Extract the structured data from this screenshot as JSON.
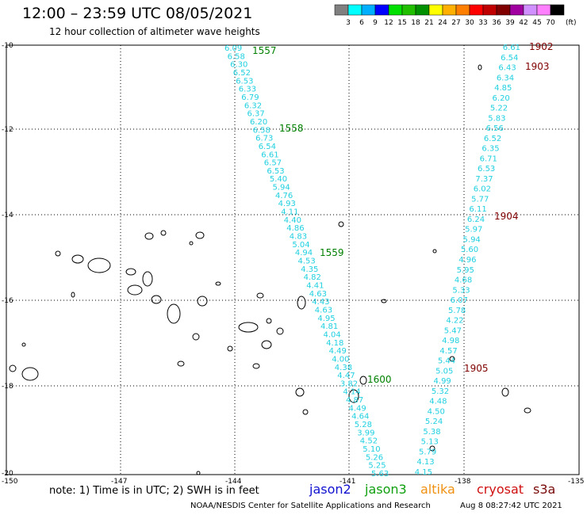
{
  "header": {
    "title": "12:00 – 23:59 UTC 08/05/2021",
    "subtitle": "12 hour collection of altimeter wave heights"
  },
  "colorbar": {
    "unit_label": "(ft)",
    "levels": [
      "3",
      "6",
      "9",
      "12",
      "15",
      "18",
      "21",
      "24",
      "27",
      "30",
      "33",
      "36",
      "39",
      "42",
      "45",
      "70"
    ],
    "colors": [
      "#808080",
      "#00ffff",
      "#00b0ff",
      "#0000ff",
      "#00e000",
      "#20c000",
      "#009000",
      "#ffff00",
      "#ffb000",
      "#ff8000",
      "#ff0000",
      "#c00000",
      "#800000",
      "#a000a0",
      "#d090ff",
      "#ff80ff",
      "#000000"
    ]
  },
  "axes": {
    "lat_labels": [
      "-10",
      "-12",
      "-14",
      "-16",
      "-18",
      "-20"
    ],
    "lon_labels": [
      "-150",
      "-147",
      "-144",
      "-141",
      "-138",
      "-135"
    ]
  },
  "tracks": {
    "jason3_west": {
      "pass_labels": [
        "1557",
        "1558",
        "1559",
        "1600"
      ],
      "values": [
        "6.09",
        "6.58",
        "6.30",
        "6.52",
        "6.53",
        "6.33",
        "6.79",
        "6.32",
        "6.37",
        "6.20",
        "6.58",
        "6.73",
        "6.54",
        "6.61",
        "6.57",
        "6.53",
        "5.40",
        "5.94",
        "4.76",
        "4.93",
        "4.11",
        "4.40",
        "4.86",
        "4.83",
        "5.04",
        "4.94",
        "4.53",
        "4.35",
        "4.82",
        "4.41",
        "4.63",
        "4.43",
        "4.63",
        "4.95",
        "4.81",
        "4.04",
        "4.18",
        "4.49",
        "4.00",
        "4.38",
        "4.47",
        "3.82",
        "4.14",
        "4.87",
        "4.49",
        "4.64",
        "5.28",
        "3.99",
        "4.52",
        "5.10",
        "5.26",
        "5.25",
        "5.63"
      ]
    },
    "jason3_east": {
      "pass_labels": [
        "1902",
        "1903",
        "1904",
        "1905"
      ],
      "values": [
        "6.61",
        "6.54",
        "6.43",
        "6.34",
        "4.85",
        "6.20",
        "5.22",
        "5.83",
        "6.56",
        "6.52",
        "6.35",
        "6.71",
        "6.53",
        "7.37",
        "6.02",
        "5.77",
        "6.11",
        "6.24",
        "5.97",
        "5.94",
        "5.60",
        "4.96",
        "5.95",
        "4.68",
        "5.33",
        "6.07",
        "5.78",
        "4.22",
        "5.47",
        "4.98",
        "4.57",
        "5.44",
        "5.05",
        "4.99",
        "5.32",
        "4.48",
        "4.50",
        "5.24",
        "5.38",
        "5.13",
        "5.79",
        "4.13",
        "4.15"
      ]
    }
  },
  "footer": {
    "note": "note:  1) Time is in UTC;  2) SWH is in feet",
    "satellites": {
      "jason2": "jason2",
      "jason3": "jason3",
      "altika": "altika",
      "cryosat": "cryosat",
      "s3a": "s3a"
    },
    "credit": "NOAA/NESDIS Center for Satellite Applications and Research",
    "timestamp": "Aug  8 08:27:42 UTC 2021"
  }
}
